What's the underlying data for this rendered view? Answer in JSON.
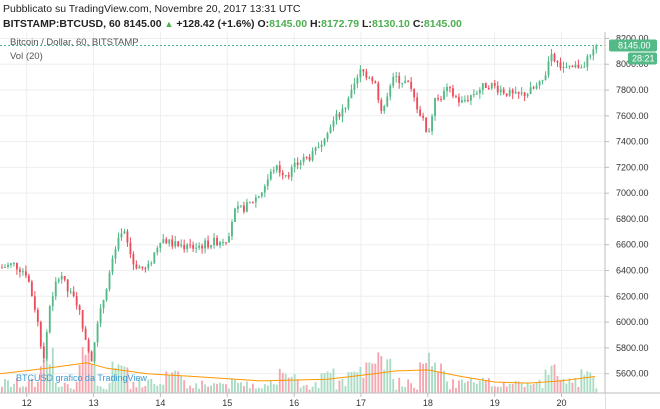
{
  "header": {
    "published": "Pubblicato su TradingView.com, Novembre 20, 2017 13:31 UTC",
    "symbol": "BITSTAMP:BTCUSD, 60",
    "last": "8145.00",
    "change": "+128.42 (+1.6%)",
    "open_label": "O:",
    "open": "8145.00",
    "high_label": "H:",
    "high": "8172.79",
    "low_label": "L:",
    "low": "8130.10",
    "close_label": "C:",
    "close": "8145.00"
  },
  "chart_data": {
    "type": "candlestick",
    "title": "Bitcoin / Dollar, 60, BITSTAMP",
    "volume_label": "Vol (20)",
    "x_ticks": [
      {
        "label": "12",
        "at": 12.0
      },
      {
        "label": "13",
        "at": 13.0
      },
      {
        "label": "14",
        "at": 14.0
      },
      {
        "label": "15",
        "at": 15.0
      },
      {
        "label": "16",
        "at": 16.0
      },
      {
        "label": "17",
        "at": 17.0
      },
      {
        "label": "18",
        "at": 18.0
      },
      {
        "label": "19",
        "at": 19.0
      },
      {
        "label": "20",
        "at": 20.0
      }
    ],
    "y_ticks": [
      5600,
      5800,
      6000,
      6200,
      6400,
      6600,
      6800,
      7000,
      7200,
      7400,
      7600,
      7800,
      8000,
      8200
    ],
    "ylim": [
      5450,
      8250
    ],
    "xlim": [
      11.6,
      20.65
    ],
    "last_price_label": "8145.00",
    "countdown_label": "28:21",
    "close_path": [
      [
        11.6,
        6420
      ],
      [
        11.8,
        6450
      ],
      [
        12.0,
        6380
      ],
      [
        12.15,
        6050
      ],
      [
        12.25,
        5700
      ],
      [
        12.35,
        6150
      ],
      [
        12.5,
        6400
      ],
      [
        12.6,
        6250
      ],
      [
        12.75,
        6150
      ],
      [
        12.9,
        5850
      ],
      [
        12.97,
        5720
      ],
      [
        13.05,
        5950
      ],
      [
        13.2,
        6300
      ],
      [
        13.35,
        6600
      ],
      [
        13.45,
        6700
      ],
      [
        13.6,
        6450
      ],
      [
        13.8,
        6400
      ],
      [
        14.0,
        6650
      ],
      [
        14.2,
        6600
      ],
      [
        14.5,
        6580
      ],
      [
        14.8,
        6620
      ],
      [
        15.0,
        6650
      ],
      [
        15.1,
        6850
      ],
      [
        15.3,
        6900
      ],
      [
        15.5,
        7000
      ],
      [
        15.7,
        7200
      ],
      [
        15.9,
        7150
      ],
      [
        16.1,
        7250
      ],
      [
        16.3,
        7300
      ],
      [
        16.5,
        7500
      ],
      [
        16.8,
        7700
      ],
      [
        17.0,
        7950
      ],
      [
        17.2,
        7880
      ],
      [
        17.3,
        7600
      ],
      [
        17.5,
        7900
      ],
      [
        17.7,
        7850
      ],
      [
        17.9,
        7600
      ],
      [
        18.0,
        7450
      ],
      [
        18.1,
        7700
      ],
      [
        18.3,
        7800
      ],
      [
        18.5,
        7700
      ],
      [
        18.7,
        7780
      ],
      [
        18.9,
        7850
      ],
      [
        19.1,
        7800
      ],
      [
        19.3,
        7750
      ],
      [
        19.5,
        7780
      ],
      [
        19.7,
        7850
      ],
      [
        19.85,
        8050
      ],
      [
        19.95,
        8000
      ],
      [
        20.1,
        7950
      ],
      [
        20.3,
        8000
      ],
      [
        20.45,
        8050
      ],
      [
        20.52,
        8145
      ]
    ],
    "volume_spikes": [
      [
        12.3,
        0.85
      ],
      [
        12.9,
        0.9
      ],
      [
        13.4,
        0.6
      ],
      [
        14.2,
        0.45
      ],
      [
        15.9,
        0.5
      ],
      [
        16.5,
        0.65
      ],
      [
        16.9,
        0.55
      ],
      [
        17.2,
        0.9
      ],
      [
        17.35,
        0.7
      ],
      [
        18.0,
        0.75
      ],
      [
        18.15,
        0.6
      ],
      [
        19.85,
        0.55
      ],
      [
        20.4,
        0.5
      ]
    ],
    "volume_ma": [
      [
        11.6,
        0.35
      ],
      [
        12.3,
        0.45
      ],
      [
        12.9,
        0.55
      ],
      [
        13.2,
        0.45
      ],
      [
        13.8,
        0.35
      ],
      [
        14.5,
        0.3
      ],
      [
        15.5,
        0.22
      ],
      [
        16.5,
        0.25
      ],
      [
        17.2,
        0.35
      ],
      [
        17.5,
        0.4
      ],
      [
        18.0,
        0.42
      ],
      [
        18.5,
        0.3
      ],
      [
        19.0,
        0.2
      ],
      [
        19.5,
        0.18
      ],
      [
        20.0,
        0.22
      ],
      [
        20.5,
        0.3
      ]
    ],
    "watermark": "BTCUSD grafico da TradingView",
    "colors": {
      "up": "#53b987",
      "down": "#eb4d5c",
      "vol_up": "#a9dcc3",
      "vol_down": "#f5a6ae",
      "vol_ma": "#ff9800",
      "grid": "#eeeeee",
      "last_line": "#53b987",
      "badge": "#53b987"
    }
  }
}
